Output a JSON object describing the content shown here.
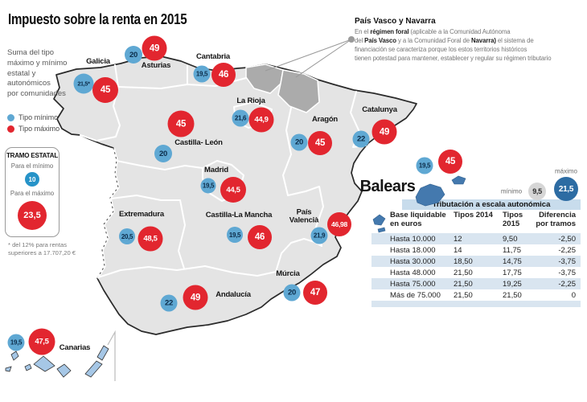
{
  "title": "Impuesto sobre la renta en 2015",
  "sidebar": {
    "description": "Suma del tipo\nmáximo y mínimo\nestatal y\nautonómicos\npor comunidades",
    "legend": [
      {
        "label": "Tipo mínimo",
        "color_key": "tipo_minimo"
      },
      {
        "label": "Tipo máximo",
        "color_key": "tipo_maximo"
      }
    ],
    "tramo_estatal": {
      "title": "TRAMO ESTATAL",
      "min_label": "Para el mínimo",
      "min_value": "10",
      "max_label": "Para el máximo",
      "max_value": "23,5"
    },
    "footnote": "* del 12% para rentas\nsuperiores a 17.707,20 €"
  },
  "annotation": {
    "title": "País Vasco y Navarra",
    "body": [
      {
        "text": "En el ",
        "bold": false
      },
      {
        "text": "régimen foral",
        "bold": true
      },
      {
        "text": " (aplicable a la Comunidad Autónoma\ndel ",
        "bold": false
      },
      {
        "text": "País Vasco",
        "bold": true
      },
      {
        "text": " y a la Comunidad Foral de ",
        "bold": false
      },
      {
        "text": "Navarra)",
        "bold": true
      },
      {
        "text": " el sistema de\nfinanciación se caracteriza porque los estos territorios históricos\ntienen potestad para mantener, establecer y regular su régimen tributario",
        "bold": false
      }
    ]
  },
  "regions": [
    {
      "id": "galicia",
      "name": "Galicia",
      "min": "21,5*",
      "max": "45"
    },
    {
      "id": "asturias",
      "name": "Asturias",
      "min": "20",
      "max": "49"
    },
    {
      "id": "cantabria",
      "name": "Cantabria",
      "min": "19,5",
      "max": "46"
    },
    {
      "id": "la_rioja",
      "name": "La Rioja",
      "min": "21,6",
      "max": "44,9"
    },
    {
      "id": "catalunya",
      "name": "Catalunya",
      "min": "22",
      "max": "49"
    },
    {
      "id": "aragon",
      "name": "Aragón",
      "min": "20",
      "max": "45"
    },
    {
      "id": "castilla_leon",
      "name": "Castilla- León",
      "min": "20",
      "max": "45"
    },
    {
      "id": "madrid",
      "name": "Madrid",
      "min": "19,5",
      "max": "44,5"
    },
    {
      "id": "extremadura",
      "name": "Extremadura",
      "min": "20,5",
      "max": "48,5"
    },
    {
      "id": "castilla_la_mancha",
      "name": "Castilla-La Mancha",
      "min": "19,5",
      "max": "46"
    },
    {
      "id": "pais_valencia",
      "name": "País\nValencià",
      "min": "21,9",
      "max": "46,98"
    },
    {
      "id": "murcia",
      "name": "Múrcia",
      "min": "20",
      "max": "47"
    },
    {
      "id": "andalucia",
      "name": "Andalucía",
      "min": "22",
      "max": "49"
    },
    {
      "id": "canarias",
      "name": "Canarias",
      "min": "19,5",
      "max": "47,5"
    },
    {
      "id": "balears",
      "name": "Balears",
      "min": "19,5",
      "max": "45"
    }
  ],
  "balears_scale": {
    "min_label": "mínimo",
    "min_value": "9,5",
    "max_label": "máximo",
    "max_value": "21,5"
  },
  "table": {
    "title": "Tributación a escala autonómica",
    "columns": [
      "Base liquidable\nen euros",
      "Tipos 2014",
      "Tipos 2015",
      "Diferencia\npor tramos"
    ],
    "rows": [
      [
        "Hasta 10.000",
        "12",
        "9,50",
        "-2,50"
      ],
      [
        "Hasta 18.000",
        "14",
        "11,75",
        "-2,25"
      ],
      [
        "Hasta 30.000",
        "18,50",
        "14,75",
        "-3,75"
      ],
      [
        "Hasta 48.000",
        "21,50",
        "17,75",
        "-3,75"
      ],
      [
        "Hasta 75.000",
        "21,50",
        "19,25",
        "-2,25"
      ],
      [
        "Más de 75.000",
        "21,50",
        "21,50",
        "0"
      ]
    ]
  },
  "colors": {
    "tipo_minimo": "#5fa8d3",
    "tipo_maximo": "#e2262f",
    "min_text": "#0c2c49",
    "tramo_min": "#2693c8",
    "foral_gray": "#ababab",
    "land": "#e4e4e4",
    "balears_islands": "#4479ae",
    "canarias_islands": "#a6c7e6",
    "scale_min_circle": "#d6d6d6",
    "scale_max_circle": "#2d6ca3",
    "table_band": "#c8dcec",
    "table_row": "#d9e5f0"
  }
}
